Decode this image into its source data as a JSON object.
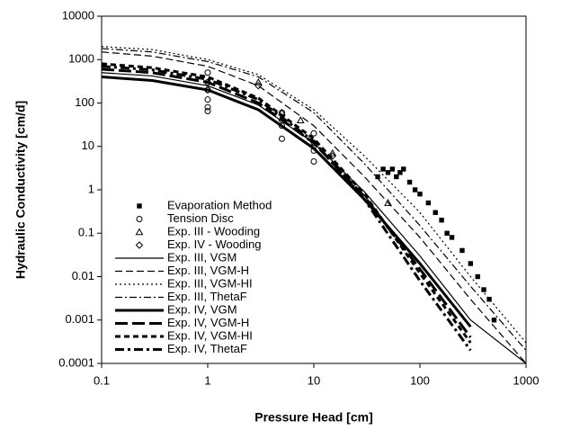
{
  "chart_data": {
    "type": "line",
    "xlabel": "Pressure Head [cm]",
    "ylabel": "Hydraulic Conductivity [cm/d]",
    "xscale": "log",
    "yscale": "log",
    "xlim": [
      0.1,
      1000
    ],
    "ylim": [
      0.0001,
      10000
    ],
    "xticks": [
      0.1,
      1,
      10,
      100,
      1000
    ],
    "yticks": [
      0.0001,
      0.001,
      0.01,
      0.1,
      1,
      10,
      100,
      1000,
      10000
    ],
    "legend": "left",
    "x": [
      0.1,
      0.3,
      1,
      3,
      10,
      30,
      100,
      300,
      1000
    ],
    "series": [
      {
        "name": "Evaporation Method",
        "color": "#000000",
        "marker": "square",
        "x": [
          40,
          45,
          50,
          55,
          60,
          65,
          70,
          80,
          90,
          100,
          120,
          140,
          160,
          180,
          200,
          250,
          300,
          350,
          400,
          450,
          500
        ],
        "values": [
          2,
          3,
          2.5,
          3,
          2,
          2.5,
          3,
          1.5,
          1,
          0.8,
          0.5,
          0.3,
          0.2,
          0.1,
          0.08,
          0.04,
          0.02,
          0.01,
          0.005,
          0.003,
          0.001
        ]
      },
      {
        "name": "Tension Disc",
        "color": "#000000",
        "marker": "circle",
        "x": [
          1,
          1,
          1,
          1,
          1,
          1,
          5,
          5,
          5,
          10,
          10,
          10,
          10
        ],
        "values": [
          500,
          300,
          200,
          120,
          80,
          65,
          60,
          30,
          15,
          20,
          12,
          8,
          4.5
        ]
      },
      {
        "name": "Exp. III - Wooding",
        "color": "#000000",
        "marker": "triangle",
        "x": [
          3,
          5,
          7.5,
          15,
          50
        ],
        "values": [
          300,
          60,
          40,
          7,
          0.5
        ]
      },
      {
        "name": "Exp. IV - Wooding",
        "color": "#000000",
        "marker": "diamond",
        "x": [
          1,
          3,
          5,
          10,
          15
        ],
        "values": [
          200,
          250,
          40,
          10,
          6
        ]
      },
      {
        "name": "Exp. III, VGM",
        "color": "#000000",
        "width": 1.2,
        "dash": "none",
        "values": [
          500,
          420,
          250,
          90,
          12,
          0.9,
          0.03,
          0.001,
          0.0001
        ]
      },
      {
        "name": "Exp. III, VGM-H",
        "color": "#000000",
        "width": 1.2,
        "dash": "8 4",
        "values": [
          1500,
          1200,
          700,
          250,
          30,
          2,
          0.08,
          0.003,
          0.0001
        ]
      },
      {
        "name": "Exp. III, VGM-HI",
        "color": "#000000",
        "width": 1.2,
        "dash": "2 3",
        "values": [
          2000,
          1700,
          1000,
          450,
          70,
          6,
          0.3,
          0.01,
          0.0003
        ]
      },
      {
        "name": "Exp. III, ThetaF",
        "color": "#000000",
        "width": 1.2,
        "dash": "8 3 2 3",
        "values": [
          1800,
          1500,
          900,
          400,
          60,
          4,
          0.15,
          0.006,
          0.0002
        ]
      },
      {
        "name": "Exp. IV, VGM",
        "color": "#000000",
        "width": 3,
        "dash": "none",
        "values": [
          400,
          330,
          200,
          70,
          9,
          0.6,
          0.02,
          0.0007,
          null
        ]
      },
      {
        "name": "Exp. IV, VGM-H",
        "color": "#000000",
        "width": 3,
        "dash": "14 5",
        "values": [
          600,
          500,
          300,
          100,
          12,
          0.7,
          0.015,
          0.0004,
          null
        ]
      },
      {
        "name": "Exp. IV, VGM-HI",
        "color": "#000000",
        "width": 3,
        "dash": "6 4",
        "values": [
          800,
          650,
          400,
          130,
          15,
          0.8,
          0.012,
          0.0003,
          null
        ]
      },
      {
        "name": "Exp. IV, ThetaF",
        "color": "#000000",
        "width": 3,
        "dash": "10 4 3 4",
        "values": [
          700,
          580,
          350,
          120,
          13,
          0.6,
          0.008,
          0.0002,
          null
        ]
      }
    ]
  }
}
